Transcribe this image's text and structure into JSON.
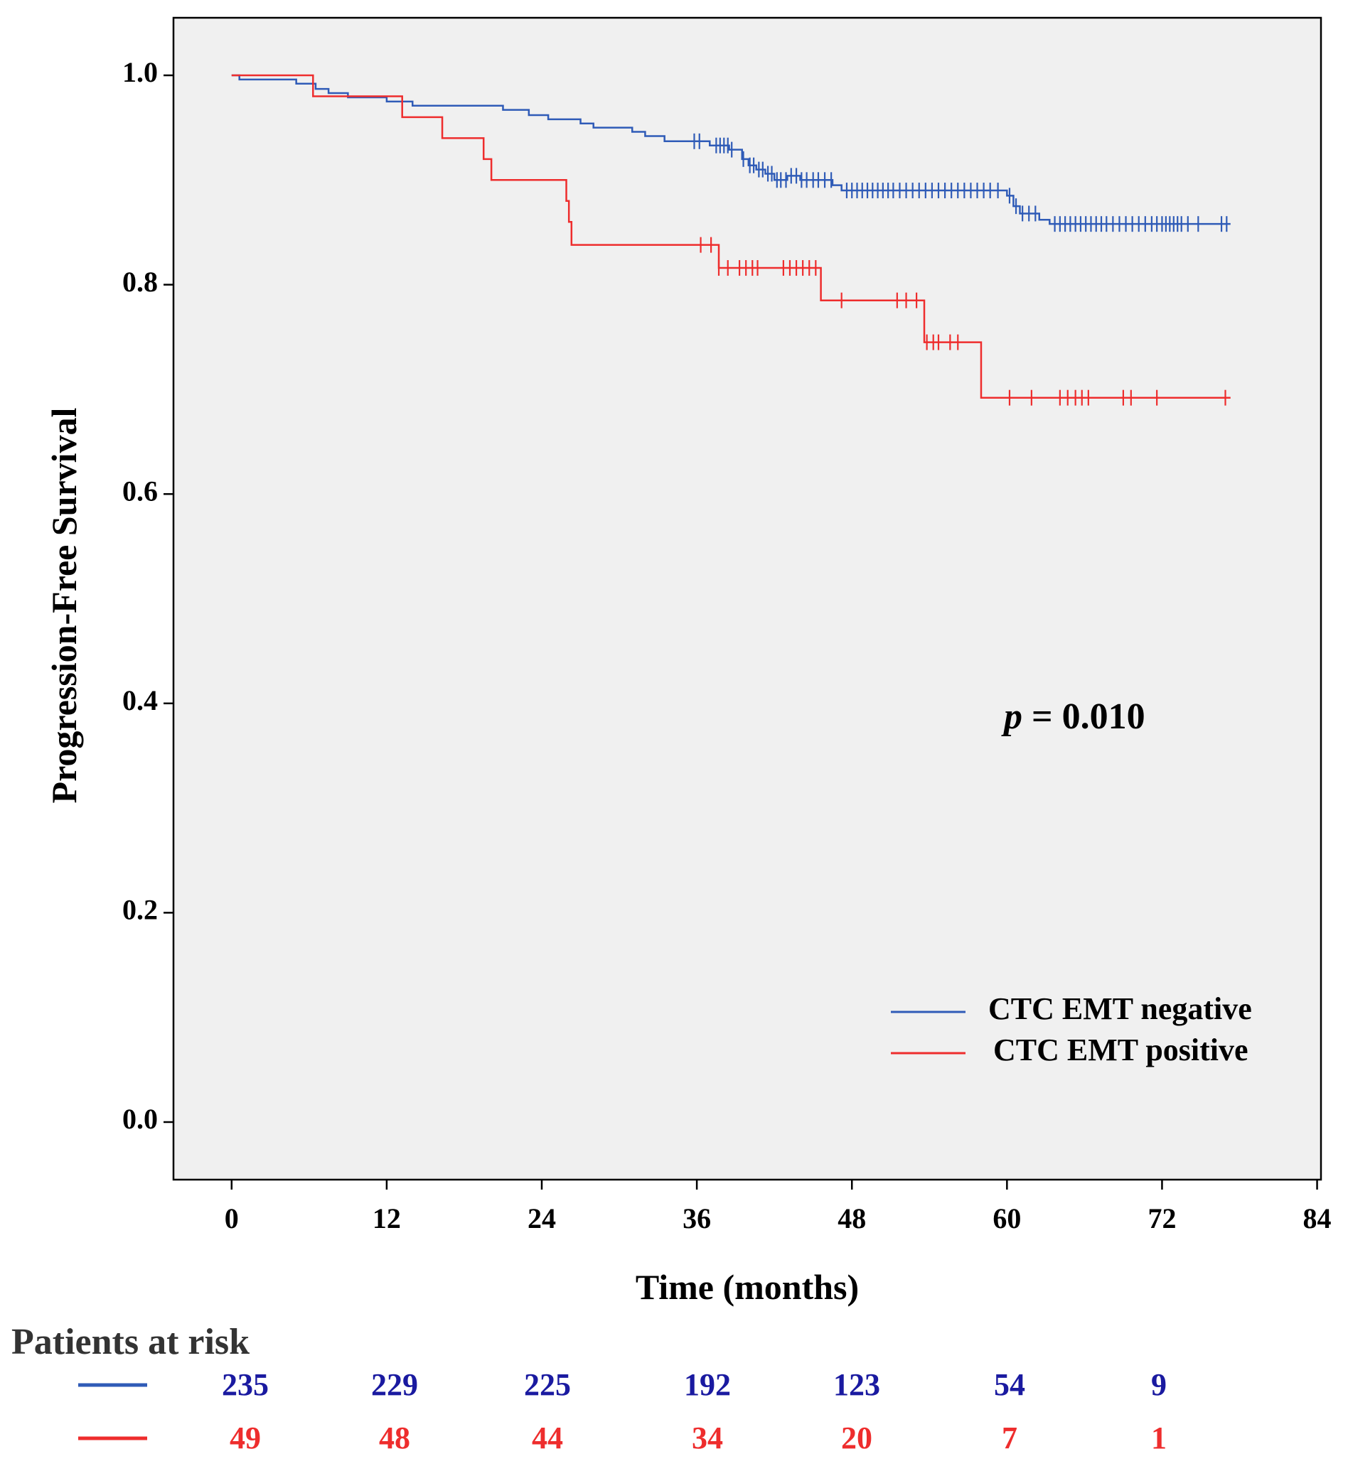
{
  "chart_data": {
    "type": "line",
    "subtype": "kaplan-meier",
    "ylabel": "Progression-Free Survival",
    "xlabel": "Time (months)",
    "xlim": [
      -4.5,
      84.3
    ],
    "ylim": [
      -0.055,
      1.055
    ],
    "x_ticks": [
      0,
      12,
      24,
      36,
      48,
      60,
      72,
      84
    ],
    "y_ticks": [
      0.0,
      0.2,
      0.4,
      0.6,
      0.8,
      1.0
    ],
    "y_tick_labels": [
      "0.0",
      "0.2",
      "0.4",
      "0.6",
      "0.8",
      "1.0"
    ],
    "annotation": {
      "italic": "p",
      "rest": " = 0.010"
    },
    "legend": {
      "position": "bottom-right",
      "entries": [
        "CTC EMT negative",
        "CTC EMT positive"
      ]
    },
    "series": [
      {
        "name": "CTC EMT negative",
        "color": "#2f5bb7",
        "steps": [
          [
            0,
            1.0
          ],
          [
            0.6,
            0.996
          ],
          [
            5,
            0.992
          ],
          [
            6.5,
            0.987
          ],
          [
            7.5,
            0.983
          ],
          [
            9,
            0.979
          ],
          [
            12,
            0.975
          ],
          [
            14,
            0.971
          ],
          [
            21,
            0.967
          ],
          [
            23,
            0.962
          ],
          [
            24.5,
            0.958
          ],
          [
            27,
            0.954
          ],
          [
            28,
            0.95
          ],
          [
            31,
            0.946
          ],
          [
            32,
            0.942
          ],
          [
            33.5,
            0.937
          ],
          [
            37,
            0.933
          ],
          [
            38.5,
            0.929
          ],
          [
            39.5,
            0.92
          ],
          [
            40,
            0.914
          ],
          [
            40.6,
            0.91
          ],
          [
            41.3,
            0.906
          ],
          [
            42,
            0.9
          ],
          [
            43,
            0.904
          ],
          [
            44,
            0.9
          ],
          [
            46.5,
            0.895
          ],
          [
            47.2,
            0.89
          ],
          [
            60,
            0.885
          ],
          [
            60.5,
            0.875
          ],
          [
            61,
            0.868
          ],
          [
            62.5,
            0.862
          ],
          [
            63.3,
            0.858
          ],
          [
            77.3,
            0.858
          ]
        ],
        "censored": [
          35.8,
          36.2,
          37.5,
          37.8,
          38.1,
          38.4,
          38.7,
          39.6,
          40.1,
          40.4,
          40.8,
          41.1,
          41.5,
          41.8,
          42.2,
          42.5,
          42.9,
          43.3,
          43.7,
          44.1,
          44.5,
          45.0,
          45.4,
          45.9,
          46.4,
          47.6,
          48.0,
          48.4,
          48.8,
          49.2,
          49.6,
          50.0,
          50.4,
          50.8,
          51.2,
          51.7,
          52.2,
          52.7,
          53.2,
          53.7,
          54.2,
          54.7,
          55.2,
          55.7,
          56.2,
          56.7,
          57.2,
          57.7,
          58.2,
          58.7,
          59.3,
          60.2,
          60.7,
          61.2,
          61.7,
          62.2,
          63.7,
          64.1,
          64.5,
          64.9,
          65.3,
          65.7,
          66.1,
          66.5,
          66.9,
          67.3,
          67.7,
          68.2,
          68.7,
          69.2,
          69.7,
          70.2,
          70.7,
          71.2,
          71.6,
          72.0,
          72.3,
          72.6,
          72.9,
          73.2,
          73.5,
          74.0,
          74.8,
          76.6,
          77.0
        ]
      },
      {
        "name": "CTC EMT positive",
        "color": "#ee2d2d",
        "steps": [
          [
            0,
            1.0
          ],
          [
            6.3,
            0.98
          ],
          [
            13.2,
            0.96
          ],
          [
            16.3,
            0.94
          ],
          [
            19.5,
            0.92
          ],
          [
            20.1,
            0.9
          ],
          [
            25.9,
            0.88
          ],
          [
            26.1,
            0.86
          ],
          [
            26.3,
            0.838
          ],
          [
            37.7,
            0.816
          ],
          [
            45.6,
            0.785
          ],
          [
            53.6,
            0.745
          ],
          [
            58,
            0.692
          ],
          [
            77.3,
            0.692
          ]
        ],
        "censored": [
          36.3,
          37.1,
          37.7,
          38.4,
          39.3,
          39.8,
          40.3,
          40.7,
          42.7,
          43.2,
          43.7,
          44.2,
          44.7,
          45.2,
          47.2,
          51.5,
          52.2,
          53.0,
          53.8,
          54.3,
          54.7,
          55.6,
          56.2,
          60.2,
          61.9,
          64.1,
          64.7,
          65.3,
          65.8,
          66.3,
          69.0,
          69.6,
          71.6,
          76.9
        ]
      }
    ]
  },
  "patients_at_risk": {
    "title": "Patients at risk",
    "rows": [
      {
        "name": "CTC EMT negative",
        "color": "#1a1aa0",
        "line_color": "#2f5bb7",
        "values": [
          "235",
          "229",
          "225",
          "192",
          "123",
          "54",
          "9"
        ]
      },
      {
        "name": "CTC EMT positive",
        "color": "#ee2d2d",
        "line_color": "#ee2d2d",
        "values": [
          "49",
          "48",
          "44",
          "34",
          "20",
          "7",
          "1"
        ]
      }
    ]
  }
}
